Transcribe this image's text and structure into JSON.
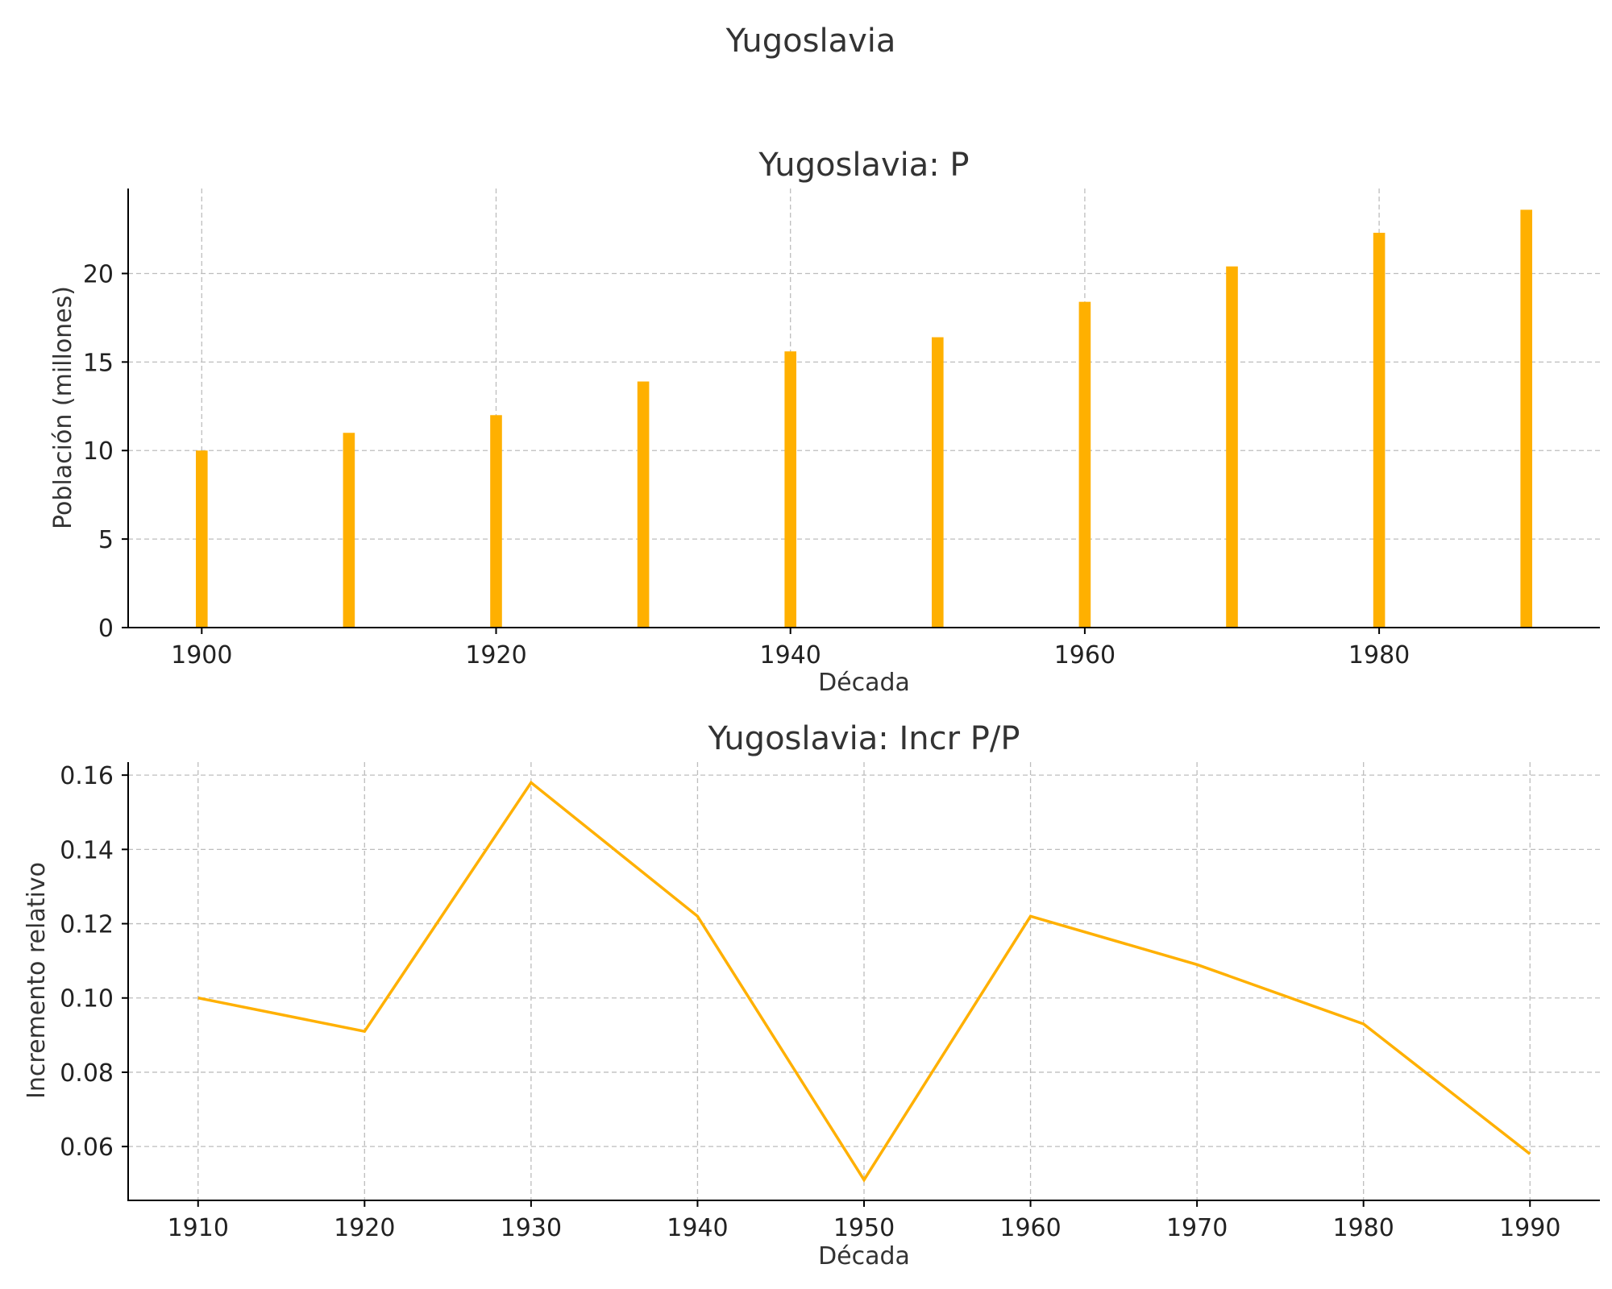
{
  "figure_title": "Yugoslavia",
  "colors": {
    "series": "#FFB000",
    "grid": "#bdbdbd",
    "axis": "#000000",
    "text": "#333333"
  },
  "chart_data": [
    {
      "type": "bar",
      "title": "Yugoslavia: P",
      "xlabel": "Década",
      "ylabel": "Población (millones)",
      "x": [
        1900,
        1910,
        1920,
        1930,
        1940,
        1950,
        1960,
        1970,
        1980,
        1990
      ],
      "values": [
        10.0,
        11.0,
        12.0,
        13.9,
        15.6,
        16.4,
        18.4,
        20.4,
        22.3,
        23.6
      ],
      "bar_width": 0.8,
      "xlim": [
        1895,
        1995
      ],
      "ylim": [
        0,
        24.8
      ],
      "xticks": [
        1900,
        1920,
        1940,
        1960,
        1980
      ],
      "yticks": [
        0,
        5,
        10,
        15,
        20
      ],
      "ytick_labels": [
        "0",
        "5",
        "10",
        "15",
        "20"
      ],
      "grid": true
    },
    {
      "type": "line",
      "title": "Yugoslavia: Incr P/P",
      "xlabel": "Década",
      "ylabel": "Incremento relativo",
      "x": [
        1910,
        1920,
        1930,
        1940,
        1950,
        1960,
        1970,
        1980,
        1990
      ],
      "values": [
        0.1,
        0.091,
        0.158,
        0.122,
        0.051,
        0.122,
        0.109,
        0.093,
        0.058
      ],
      "xlim": [
        1905.8,
        1994.2
      ],
      "ylim": [
        0.0455,
        0.1635
      ],
      "xticks": [
        1910,
        1920,
        1930,
        1940,
        1950,
        1960,
        1970,
        1980,
        1990
      ],
      "yticks": [
        0.06,
        0.08,
        0.1,
        0.12,
        0.14,
        0.16
      ],
      "ytick_labels": [
        "0.06",
        "0.08",
        "0.10",
        "0.12",
        "0.14",
        "0.16"
      ],
      "grid": true
    }
  ]
}
